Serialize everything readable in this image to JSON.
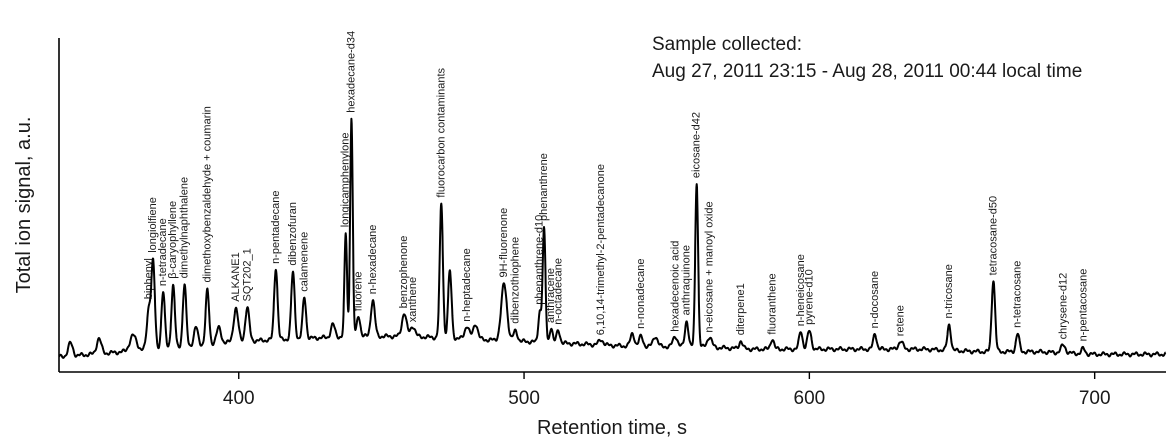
{
  "chart_data": {
    "type": "line",
    "xlabel": "Retention time, s",
    "ylabel": "Total ion signal, a.u.",
    "xlim": [
      337,
      725
    ],
    "ylim": [
      0,
      100
    ],
    "x_ticks": [
      400,
      500,
      600,
      700
    ],
    "grid": false,
    "annotation": [
      "Sample collected:",
      "Aug 27, 2011 23:15 - Aug 28, 2011 00:44 local time"
    ],
    "colors": {
      "trace": "#000000",
      "label": "#1a1a1a",
      "internal_standard": "#d22b2b"
    },
    "baseline": [
      [
        337,
        2
      ],
      [
        360,
        4
      ],
      [
        380,
        6
      ],
      [
        400,
        8
      ],
      [
        420,
        9
      ],
      [
        440,
        10
      ],
      [
        460,
        10
      ],
      [
        480,
        9
      ],
      [
        500,
        8
      ],
      [
        520,
        7
      ],
      [
        540,
        6
      ],
      [
        560,
        6
      ],
      [
        580,
        5
      ],
      [
        600,
        5
      ],
      [
        620,
        5
      ],
      [
        640,
        5
      ],
      [
        660,
        4
      ],
      [
        680,
        4
      ],
      [
        700,
        3
      ],
      [
        725,
        3
      ]
    ],
    "peaks": [
      {
        "x": 341,
        "y": 5,
        "w": 0.8
      },
      {
        "x": 351,
        "y": 6,
        "w": 0.8
      },
      {
        "x": 363,
        "y": 6,
        "w": 1.2
      },
      {
        "x": 368.5,
        "y": 16,
        "w": 0.7,
        "label": "biphenyl",
        "color": "label"
      },
      {
        "x": 370,
        "y": 33,
        "w": 0.6,
        "label": "longiolfiene",
        "color": "label"
      },
      {
        "x": 373.5,
        "y": 22,
        "w": 0.6,
        "label": "n-tetradecane",
        "color": "label"
      },
      {
        "x": 377,
        "y": 24,
        "w": 0.6,
        "label": "β-caryophyllene",
        "color": "label"
      },
      {
        "x": 381,
        "y": 24,
        "w": 0.6,
        "label": "dimethylnaphthalene",
        "color": "label"
      },
      {
        "x": 385,
        "y": 7,
        "w": 0.7
      },
      {
        "x": 389,
        "y": 21,
        "w": 0.6,
        "label": "dimethoxybenzaldehyde + coumarin",
        "color": "label"
      },
      {
        "x": 393,
        "y": 6,
        "w": 0.8
      },
      {
        "x": 399,
        "y": 13,
        "w": 0.8,
        "label": "ALKANE1",
        "color": "label"
      },
      {
        "x": 403,
        "y": 13,
        "w": 0.7,
        "label": "SQT202_1",
        "color": "label"
      },
      {
        "x": 413,
        "y": 28,
        "w": 0.6,
        "label": "n-pentadecane",
        "color": "label"
      },
      {
        "x": 419,
        "y": 26,
        "w": 0.6,
        "label": "dibenzofuran",
        "color": "label"
      },
      {
        "x": 423,
        "y": 16,
        "w": 0.6,
        "label": "calamenene",
        "color": "label"
      },
      {
        "x": 433,
        "y": 5,
        "w": 0.7
      },
      {
        "x": 437.5,
        "y": 40,
        "w": 0.45,
        "label": "longicamphenylone",
        "color": "label"
      },
      {
        "x": 439.5,
        "y": 85,
        "w": 0.45,
        "label": "hexadecane-d34",
        "color": "internal_standard"
      },
      {
        "x": 442,
        "y": 8,
        "w": 0.6,
        "label": "fluorene",
        "color": "label"
      },
      {
        "x": 447,
        "y": 14,
        "w": 0.7,
        "label": "n-hexadecane",
        "color": "label"
      },
      {
        "x": 458,
        "y": 9,
        "w": 0.8,
        "label": "benzophenone",
        "color": "label"
      },
      {
        "x": 461,
        "y": 4,
        "w": 0.8,
        "label": "xanthene",
        "color": "label"
      },
      {
        "x": 471,
        "y": 52,
        "w": 0.55,
        "label": "fluorocarbon contaminants",
        "color": "label"
      },
      {
        "x": 474,
        "y": 26,
        "w": 0.6
      },
      {
        "x": 480,
        "y": 5,
        "w": 0.8,
        "label": "n-heptadecane",
        "color": "label"
      },
      {
        "x": 483,
        "y": 6,
        "w": 0.8
      },
      {
        "x": 493,
        "y": 22,
        "w": 1.0,
        "label": "9H-fluorenone",
        "color": "label"
      },
      {
        "x": 497,
        "y": 4,
        "w": 0.7,
        "label": "dibenzothiophene",
        "color": "label"
      },
      {
        "x": 505.5,
        "y": 12,
        "w": 0.5,
        "label": "phenanthrene-d10",
        "color": "internal_standard"
      },
      {
        "x": 507,
        "y": 44,
        "w": 0.5,
        "label": "phenanthrene",
        "color": "label"
      },
      {
        "x": 509.5,
        "y": 6,
        "w": 0.5,
        "label": "anthracene",
        "color": "label"
      },
      {
        "x": 512,
        "y": 5,
        "w": 0.6,
        "label": "n-octadecane",
        "color": "label"
      },
      {
        "x": 527,
        "y": 2,
        "w": 0.8,
        "label": "6,10,14-trimethyl-2-pentadecanone",
        "color": "label"
      },
      {
        "x": 538,
        "y": 5,
        "w": 0.7
      },
      {
        "x": 541,
        "y": 4,
        "w": 0.7,
        "label": "n-nonadecane",
        "color": "label"
      },
      {
        "x": 546,
        "y": 4,
        "w": 0.8
      },
      {
        "x": 553,
        "y": 4,
        "w": 0.8,
        "label": "hexadecenoic acid",
        "color": "label"
      },
      {
        "x": 557,
        "y": 10,
        "w": 0.6,
        "label": "anthraquinone",
        "color": "label"
      },
      {
        "x": 560.5,
        "y": 64,
        "w": 0.5,
        "label": "eicosane-d42",
        "color": "internal_standard"
      },
      {
        "x": 565,
        "y": 4,
        "w": 0.8,
        "label": "n-eicosane + manoyl oxide",
        "color": "label"
      },
      {
        "x": 576,
        "y": 3,
        "w": 0.6,
        "label": "diterpene1",
        "color": "label"
      },
      {
        "x": 587,
        "y": 4,
        "w": 0.6,
        "label": "fluoranthene",
        "color": "label"
      },
      {
        "x": 597,
        "y": 7,
        "w": 0.6,
        "label": "n-heneicosane",
        "color": "label"
      },
      {
        "x": 600,
        "y": 7,
        "w": 0.7,
        "label": "pyrene-d10",
        "color": "internal_standard"
      },
      {
        "x": 623,
        "y": 6,
        "w": 0.6,
        "label": "n-docosane",
        "color": "label"
      },
      {
        "x": 632,
        "y": 3,
        "w": 0.8,
        "label": "retene",
        "color": "label"
      },
      {
        "x": 649,
        "y": 10,
        "w": 0.6,
        "label": "n-tricosane",
        "color": "label"
      },
      {
        "x": 664.5,
        "y": 28,
        "w": 0.6,
        "label": "tetracosane-d50",
        "color": "internal_standard"
      },
      {
        "x": 673,
        "y": 7,
        "w": 0.6,
        "label": "n-tetracosane",
        "color": "label"
      },
      {
        "x": 689,
        "y": 3,
        "w": 0.8,
        "label": "chrysene-d12",
        "color": "internal_standard"
      },
      {
        "x": 696,
        "y": 2,
        "w": 0.6,
        "label": "n-pentacosane",
        "color": "label"
      }
    ]
  }
}
